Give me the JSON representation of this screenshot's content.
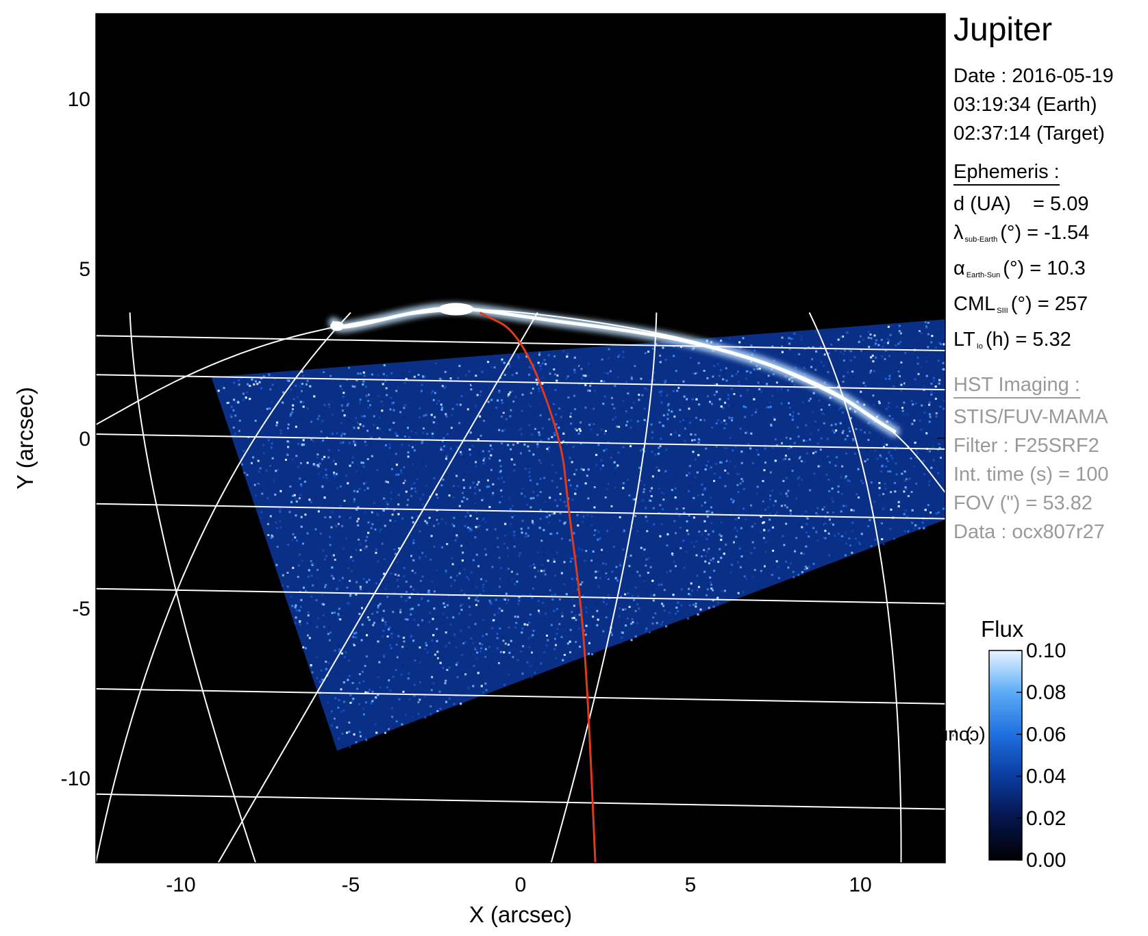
{
  "target": "Jupiter",
  "info": {
    "date_line": "Date : 2016-05-19",
    "earth_time": "03:19:34 (Earth)",
    "target_time": "02:37:14 (Target)"
  },
  "ephemeris": {
    "header": "Ephemeris :",
    "d_label": "d (UA)",
    "d_value": "= 5.09",
    "lambda_symbol": "λ",
    "lambda_sub": "sub-Earth",
    "lambda_rest": "(°) = -1.54",
    "alpha_symbol": "α",
    "alpha_sub": "Earth-Sun",
    "alpha_rest": "(°) = 10.3",
    "cml_symbol": "CML",
    "cml_sub": "SIII",
    "cml_rest": "(°) = 257",
    "lt_symbol": "LT",
    "lt_sub": "Io",
    "lt_rest": "(h) = 5.32"
  },
  "hst": {
    "header": "HST Imaging :",
    "instrument": "STIS/FUV-MAMA",
    "filter": "Filter : F25SRF2",
    "int_time": "Int. time (s) = 100",
    "fov": "FOV (\") = 53.82",
    "data_id": "Data : ocx807r27"
  },
  "colorbar": {
    "title": "Flux",
    "unit_main": "(counts.s",
    "unit_sup": "-1",
    "unit_close": ")",
    "ticks": [
      "0.00",
      "0.02",
      "0.04",
      "0.06",
      "0.08",
      "0.10"
    ],
    "range": [
      0.0,
      0.1
    ],
    "colors": [
      "#000000",
      "#06154d",
      "#0a3c9e",
      "#1f6fe0",
      "#5cabf7",
      "#e6f4ff"
    ]
  },
  "chart_data": {
    "type": "heatmap",
    "xlabel": "X (arcsec)",
    "ylabel": "Y (arcsec)",
    "xlim": [
      -12.5,
      12.5
    ],
    "ylim": [
      -12.5,
      12.5
    ],
    "xticks": [
      -10,
      -5,
      0,
      5,
      10
    ],
    "yticks": [
      -10,
      -5,
      0,
      5,
      10
    ],
    "xtick_labels": [
      "-10",
      "-5",
      "0",
      "5",
      "10"
    ],
    "ytick_labels": [
      "-10",
      "-5",
      "0",
      "5",
      "10"
    ],
    "grid": true,
    "grid_color": "#ffffff",
    "background": "#000000",
    "meridian_color": "#e03a1a",
    "detector_corners": [
      [
        -9.1,
        1.8
      ],
      [
        -5.4,
        -9.2
      ],
      [
        12.5,
        -2.4
      ],
      [
        12.5,
        3.5
      ]
    ],
    "limb_arc": [
      [
        -12.5,
        0.4
      ],
      [
        -10.0,
        1.8
      ],
      [
        -7.5,
        2.8
      ],
      [
        -5.0,
        3.4
      ],
      [
        -2.5,
        3.75
      ],
      [
        -1.0,
        3.8
      ],
      [
        1.0,
        3.6
      ],
      [
        3.0,
        3.3
      ],
      [
        5.0,
        2.9
      ],
      [
        7.0,
        2.3
      ],
      [
        9.0,
        1.4
      ],
      [
        10.5,
        0.6
      ],
      [
        11.5,
        -0.3
      ],
      [
        12.5,
        -1.6
      ]
    ],
    "auroral_oval": [
      [
        -5.5,
        3.4
      ],
      [
        -5.3,
        3.2
      ],
      [
        -3.0,
        3.75
      ],
      [
        -2.0,
        3.85
      ],
      [
        -1.0,
        3.75
      ],
      [
        1.0,
        3.45
      ],
      [
        3.0,
        3.2
      ],
      [
        5.0,
        2.85
      ],
      [
        7.0,
        2.3
      ],
      [
        8.5,
        1.7
      ],
      [
        9.5,
        1.2
      ],
      [
        10.5,
        0.5
      ],
      [
        11.0,
        0.2
      ]
    ],
    "latitude_lines_y": [
      2.9,
      1.75,
      0.0,
      -2.05,
      -4.55,
      -7.5,
      -10.6
    ],
    "longitude_lines_x": [
      [
        -11.5,
        -7.8
      ],
      [
        -5.0,
        -12.5
      ],
      [
        0.5,
        -8.9
      ],
      [
        4.0,
        0.9
      ],
      [
        8.5,
        11.2
      ]
    ],
    "meridian_x": [
      [
        -1.2,
        3.7
      ],
      [
        0.0,
        3.1
      ],
      [
        1.2,
        0.0
      ],
      [
        1.4,
        -2.0
      ],
      [
        1.8,
        -5.0
      ],
      [
        2.0,
        -8.0
      ],
      [
        2.2,
        -12.5
      ]
    ]
  }
}
